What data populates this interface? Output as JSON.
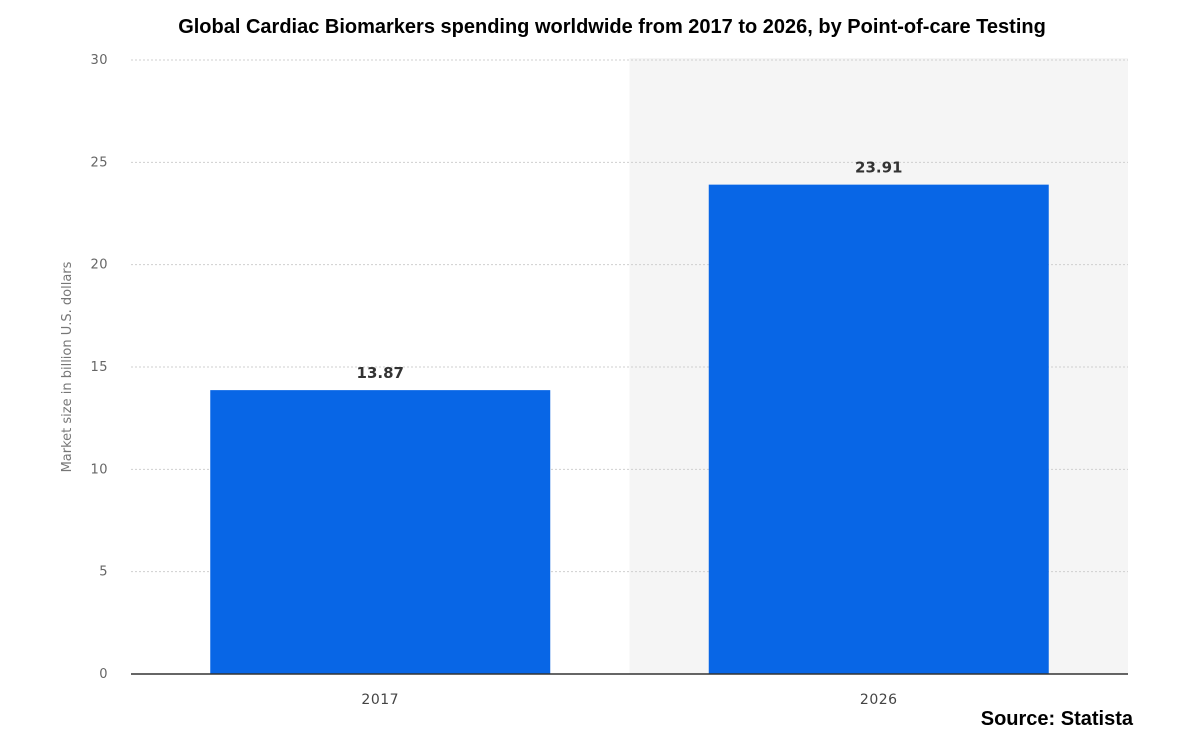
{
  "chart_data": {
    "type": "bar",
    "title": "Global Cardiac Biomarkers spending worldwide from 2017 to 2026, by Point-of-care Testing",
    "xlabel": "",
    "ylabel": "Market size in billion U.S. dollars",
    "categories": [
      "2017",
      "2026"
    ],
    "values": [
      13.87,
      23.91
    ],
    "data_labels": [
      "13.87",
      "23.91"
    ],
    "ylim": [
      0,
      30
    ],
    "yticks": [
      0,
      5,
      10,
      15,
      20,
      25,
      30
    ],
    "ytick_labels": [
      "0",
      "5",
      "10",
      "15",
      "20",
      "25",
      "30"
    ],
    "grid": true,
    "highlight_forecast_category": "2026",
    "bar_color": "#0866e6",
    "forecast_background_color": "#f5f5f5",
    "gridline_color": "#cfcfcf",
    "source": "Source: Statista"
  }
}
